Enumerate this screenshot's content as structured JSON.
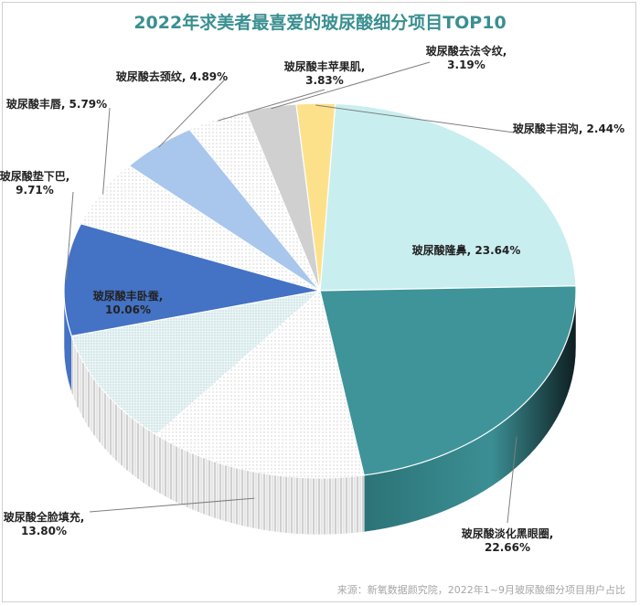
{
  "chart_data": {
    "type": "pie",
    "title": "2022年求美者最喜爱的玻尿酸细分项目TOP10",
    "slices": [
      {
        "label": "玻尿酸隆鼻",
        "value": 23.64,
        "value_text": "23.64%",
        "color": "#c9eef0",
        "pattern": "none"
      },
      {
        "label": "玻尿酸淡化黑眼圈",
        "value": 22.66,
        "value_text": "22.66%",
        "color": "#3e9499",
        "pattern": "none"
      },
      {
        "label": "玻尿酸全脸填充",
        "value": 13.8,
        "value_text": "13.80%",
        "color": "#ffffff",
        "pattern": "dots"
      },
      {
        "label": "玻尿酸丰卧蚕",
        "value": 10.06,
        "value_text": "10.06%",
        "color": "#e8f6f7",
        "pattern": "dots"
      },
      {
        "label": "玻尿酸垫下巴",
        "value": 9.71,
        "value_text": "9.71%",
        "color": "#4472c4",
        "pattern": "none"
      },
      {
        "label": "玻尿酸丰唇",
        "value": 5.79,
        "value_text": "5.79%",
        "color": "#ffffff",
        "pattern": "dots"
      },
      {
        "label": "玻尿酸去颈纹",
        "value": 4.89,
        "value_text": "4.89%",
        "color": "#a9c7ec",
        "pattern": "none"
      },
      {
        "label": "玻尿酸丰苹果肌",
        "value": 3.83,
        "value_text": "3.83%",
        "color": "#ffffff",
        "pattern": "dots"
      },
      {
        "label": "玻尿酸去法令纹",
        "value": 3.19,
        "value_text": "3.19%",
        "color": "#d0d0d0",
        "pattern": "none"
      },
      {
        "label": "玻尿酸丰泪沟",
        "value": 2.44,
        "value_text": "2.44%",
        "color": "#fde18a",
        "pattern": "none"
      }
    ],
    "source": "来源：新氧数据颜究院，2022年1~9月玻尿酸细分项目用户占比"
  }
}
